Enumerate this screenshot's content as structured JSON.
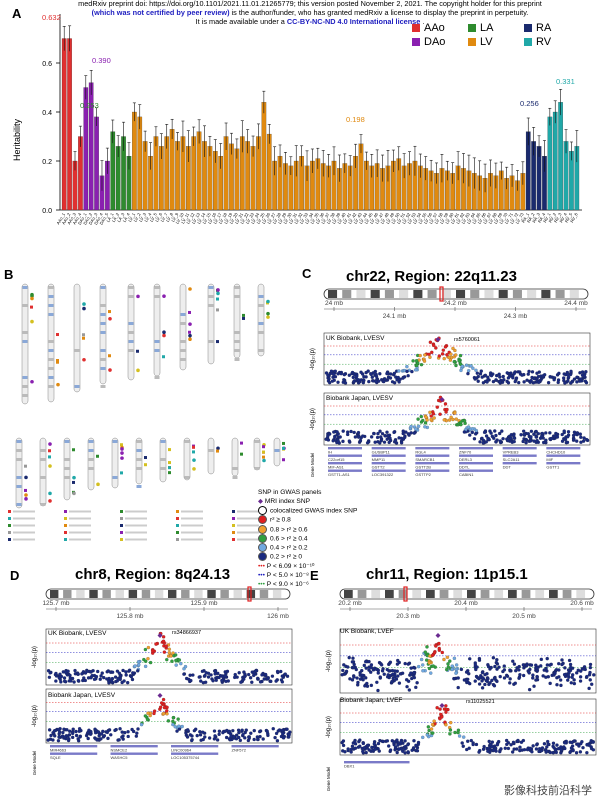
{
  "notice": {
    "line1": "medRxiv preprint doi: https://doi.org/10.1101/2021.11.01.21265779; this version posted November 2, 2021. The copyright holder for this preprint",
    "line2": "(which was not certified by peer review)",
    "line2b": " is the author/funder, who has granted medRxiv a license to display the preprint in perpetuity.",
    "line3a": "It is made available under a ",
    "line3b": "CC-BY-NC-ND 4.0 International license",
    "line3c": " ."
  },
  "panels": {
    "a": "A",
    "b": "B",
    "c": "C",
    "d": "D",
    "e": "E"
  },
  "chart_a": {
    "ylabel": "Heritability",
    "yticks": [
      "0.0",
      "0.2",
      "0.4",
      "0.6"
    ],
    "legend": [
      {
        "name": "AAo",
        "color": "#e03030"
      },
      {
        "name": "LA",
        "color": "#2e8b2e"
      },
      {
        "name": "RA",
        "color": "#1a2a6e"
      },
      {
        "name": "DAo",
        "color": "#8a20b0"
      },
      {
        "name": "LV",
        "color": "#e08a10"
      },
      {
        "name": "RV",
        "color": "#20a8a8"
      }
    ],
    "annotations": [
      {
        "text": "0.632",
        "color": "#e03030"
      },
      {
        "text": "0.390",
        "color": "#8a20b0"
      },
      {
        "text": "0.253",
        "color": "#2e8b2e"
      },
      {
        "text": "0.198",
        "color": "#e08a10"
      },
      {
        "text": "0.256",
        "color": "#1a2a6e"
      },
      {
        "text": "0.331",
        "color": "#20a8a8"
      }
    ]
  },
  "chart_data": {
    "type": "bar",
    "title": "",
    "xlabel": "",
    "ylabel": "Heritability",
    "ylim": [
      0,
      0.8
    ],
    "groups": [
      {
        "name": "AAo",
        "color": "#e03030",
        "values": [
          0.7,
          0.7,
          0.2,
          0.3
        ]
      },
      {
        "name": "DAo",
        "color": "#8a20b0",
        "values": [
          0.5,
          0.52,
          0.38,
          0.14,
          0.2
        ]
      },
      {
        "name": "LA",
        "color": "#2e8b2e",
        "values": [
          0.32,
          0.26,
          0.3,
          0.22
        ]
      },
      {
        "name": "LV",
        "color": "#e08a10",
        "values": [
          0.4,
          0.38,
          0.28,
          0.22,
          0.3,
          0.26,
          0.3,
          0.33,
          0.28,
          0.3,
          0.26,
          0.3,
          0.32,
          0.28,
          0.26,
          0.24,
          0.22,
          0.3,
          0.27,
          0.25,
          0.3,
          0.28,
          0.26,
          0.3,
          0.44,
          0.31,
          0.2,
          0.22,
          0.19,
          0.18,
          0.2,
          0.22,
          0.18,
          0.2,
          0.21,
          0.19,
          0.18,
          0.2,
          0.17,
          0.19,
          0.18,
          0.22,
          0.27,
          0.2,
          0.18,
          0.19,
          0.17,
          0.18,
          0.2,
          0.21,
          0.18,
          0.19,
          0.2,
          0.18,
          0.17,
          0.16,
          0.15,
          0.17,
          0.16,
          0.15,
          0.18,
          0.17,
          0.16,
          0.15,
          0.14,
          0.13,
          0.15,
          0.14,
          0.16,
          0.13,
          0.14,
          0.12,
          0.15
        ]
      },
      {
        "name": "RA",
        "color": "#1a2a6e",
        "values": [
          0.32,
          0.28,
          0.26,
          0.22
        ]
      },
      {
        "name": "RV",
        "color": "#20a8a8",
        "values": [
          0.38,
          0.4,
          0.44,
          0.28,
          0.24,
          0.26
        ]
      }
    ]
  },
  "panel_c": {
    "title": "chr22, Region: 22q11.23",
    "ticks": [
      "24 mb",
      "24.1 mb",
      "24.2 mb",
      "24.3 mb",
      "24.4 mb"
    ],
    "track1": "UK Biobank, LVESV",
    "track2": "Biobank Japan, LVESV",
    "snp": "rs5760061",
    "genes": [
      "IH",
      "GUSBP11",
      "RGL4",
      "ZNF70",
      "VPREB3",
      "CHCHD10",
      "C22orf15",
      "MMP11",
      "SMARCB1",
      "DERL3",
      "SLC2A11",
      "MIF",
      "MIF-AS1",
      "GSTT2",
      "GSTT2B",
      "DDTL",
      "DDT",
      "GSTT1",
      "GSTT1-AS1",
      "LOC391322",
      "GSTTP2",
      "CABIN1"
    ]
  },
  "panel_d": {
    "title": "chr8, Region: 8q24.13",
    "ticks": [
      "125.7 mb",
      "125.8 mb",
      "125.9 mb",
      "126 mb"
    ],
    "track1": "UK Biobank, LVESV",
    "track2": "Biobank Japan, LVESV",
    "snp": "rs34866937",
    "genes": [
      "MIR4663",
      "NSMCE2",
      "LINC00964",
      "ZNF572",
      "SQLE",
      "WASHC5",
      "LOC105375744"
    ]
  },
  "panel_e": {
    "title": "chr11, Region: 11p15.1",
    "ticks": [
      "20.2 mb",
      "20.3 mb",
      "20.4 mb",
      "20.5 mb",
      "20.6 mb"
    ],
    "track1": "UK Biobank, LVEF",
    "track2": "Biobank Japan, LVEF",
    "snp": "rs11025521",
    "genes": [
      "DBX1"
    ]
  },
  "ld_legend": {
    "head1": "SNP in GWAS panels",
    "head2": "MRI index SNP",
    "head3": "colocalized GWAS index SNP",
    "items": [
      {
        "label": "r² ≥ 0.8",
        "color": "#e02020"
      },
      {
        "label": "0.8 > r² ≥ 0.6",
        "color": "#f0a030"
      },
      {
        "label": "0.6 > r² ≥ 0.4",
        "color": "#30a040"
      },
      {
        "label": "0.4 > r² ≥ 0.2",
        "color": "#70a8e0"
      },
      {
        "label": "0.2 > r² ≥ 0",
        "color": "#1a2a80"
      }
    ],
    "p1": "P < 6.09 × 10⁻¹⁰",
    "p2": "P < 5.0 × 10⁻⁸",
    "p3": "P < 9.0 × 10⁻⁶",
    "ldlabel": "LD (r²) with MRI index SNP"
  },
  "ylabel_logp": "-log₁₀(p)",
  "gene_model": "Gene Model",
  "watermark": "影像科技前沿科学"
}
